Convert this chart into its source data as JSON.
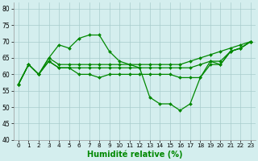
{
  "line_dip": [
    57,
    63,
    60,
    65,
    69,
    68,
    71,
    72,
    72,
    67,
    64,
    63,
    62,
    53,
    51,
    51,
    49,
    51,
    59,
    64,
    64,
    67,
    68,
    70
  ],
  "line_upper": [
    57,
    63,
    60,
    65,
    63,
    63,
    63,
    63,
    63,
    63,
    63,
    63,
    63,
    63,
    63,
    63,
    63,
    64,
    65,
    66,
    67,
    68,
    69,
    70
  ],
  "line_mid": [
    57,
    63,
    60,
    64,
    62,
    62,
    62,
    62,
    62,
    62,
    62,
    62,
    62,
    62,
    62,
    62,
    62,
    62,
    63,
    64,
    63,
    67,
    68,
    70
  ],
  "line_low": [
    57,
    63,
    60,
    64,
    62,
    62,
    60,
    60,
    59,
    60,
    60,
    60,
    60,
    60,
    60,
    60,
    59,
    59,
    59,
    63,
    63,
    67,
    68,
    70
  ],
  "x": [
    0,
    1,
    2,
    3,
    4,
    5,
    6,
    7,
    8,
    9,
    10,
    11,
    12,
    13,
    14,
    15,
    16,
    17,
    18,
    19,
    20,
    21,
    22,
    23
  ],
  "xlabel": "Humidité relative (%)",
  "ylim": [
    40,
    82
  ],
  "yticks": [
    40,
    45,
    50,
    55,
    60,
    65,
    70,
    75,
    80
  ],
  "xlim": [
    -0.5,
    23.5
  ],
  "bg_color": "#d4eeee",
  "grid_color": "#a8cccc",
  "line_color": "#008800",
  "marker": "D",
  "markersize": 2.0,
  "linewidth": 0.9
}
